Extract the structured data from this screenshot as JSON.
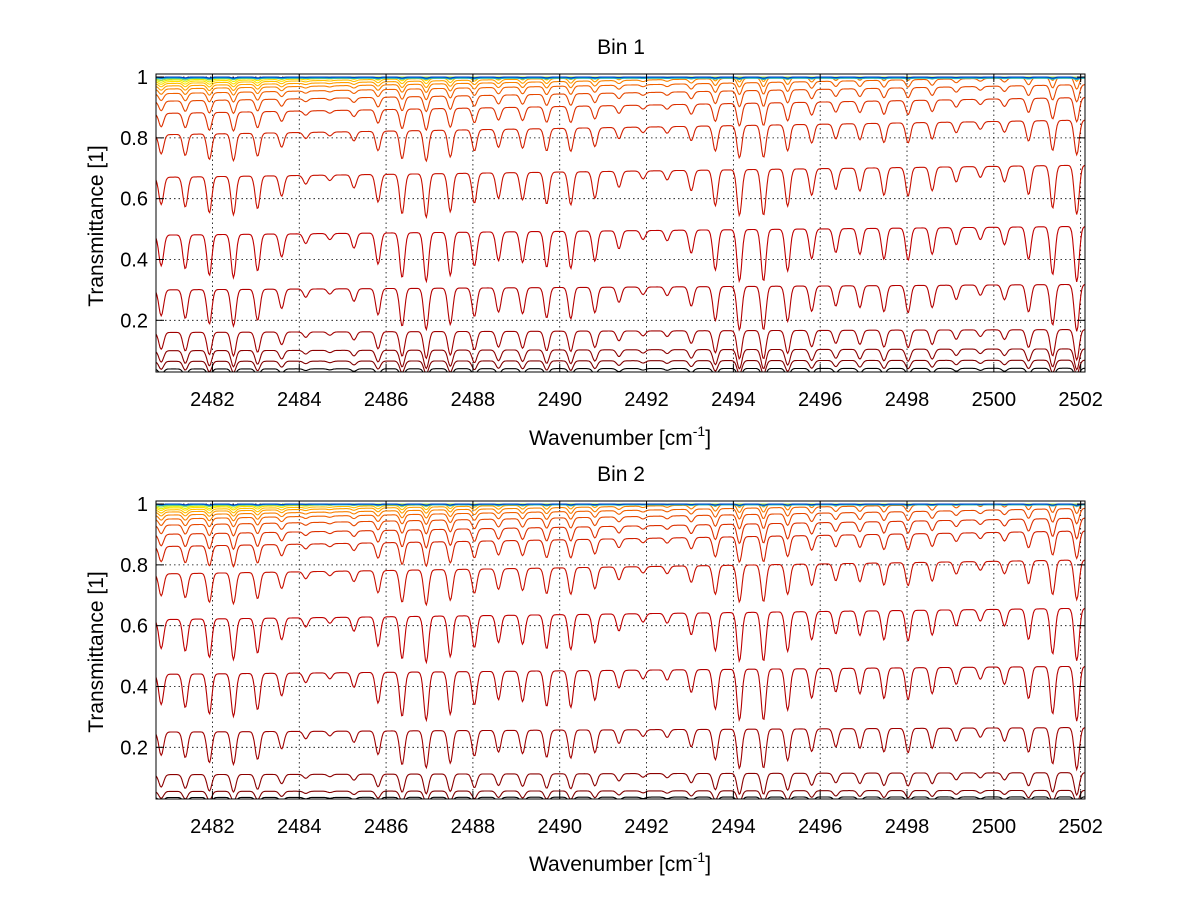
{
  "chart_data": [
    {
      "type": "line",
      "title": "Bin 1",
      "xlabel": "Wavenumber [cm",
      "xlabel_sup": "-1",
      "xlabel_close": "]",
      "ylabel": "Transmittance [1]",
      "xlim": [
        2480.7,
        2502.1
      ],
      "ylim": [
        0.03,
        1.01
      ],
      "xticks": [
        2482,
        2484,
        2486,
        2488,
        2490,
        2492,
        2494,
        2496,
        2498,
        2500,
        2502
      ],
      "yticks": [
        0.2,
        0.4,
        0.6,
        0.8,
        1
      ],
      "grid": true,
      "legend": "none",
      "line_spacing_cm1": 0.555,
      "series_baselines": [
        0.04,
        0.065,
        0.1,
        0.16,
        0.3,
        0.48,
        0.67,
        0.81,
        0.88,
        0.92,
        0.945,
        0.96,
        0.97,
        0.978,
        0.984,
        0.989,
        0.993,
        0.996,
        0.998,
        1.0
      ],
      "series_colors": [
        "#000000",
        "#7f0000",
        "#8b0000",
        "#a00000",
        "#b40000",
        "#c00000",
        "#c81000",
        "#d22000",
        "#dc3000",
        "#e64800",
        "#f06000",
        "#f88000",
        "#ffa000",
        "#ffc000",
        "#ffe000",
        "#e6f000",
        "#a0e040",
        "#40c0a0",
        "#00a0e0",
        "#0040c0"
      ]
    },
    {
      "type": "line",
      "title": "Bin 2",
      "xlabel": "Wavenumber [cm",
      "xlabel_sup": "-1",
      "xlabel_close": "]",
      "ylabel": "Transmittance [1]",
      "xlim": [
        2480.7,
        2502.1
      ],
      "ylim": [
        0.03,
        1.01
      ],
      "xticks": [
        2482,
        2484,
        2486,
        2488,
        2490,
        2492,
        2494,
        2496,
        2498,
        2500,
        2502
      ],
      "yticks": [
        0.2,
        0.4,
        0.6,
        0.8,
        1
      ],
      "grid": true,
      "legend": "none",
      "line_spacing_cm1": 0.555,
      "series_baselines": [
        0.035,
        0.055,
        0.11,
        0.25,
        0.44,
        0.62,
        0.77,
        0.86,
        0.9,
        0.93,
        0.95,
        0.963,
        0.973,
        0.98,
        0.986,
        0.99,
        0.994,
        0.997,
        0.999,
        1.0
      ],
      "series_colors": [
        "#000000",
        "#7f0000",
        "#8b0000",
        "#a00000",
        "#b40000",
        "#c00000",
        "#c81000",
        "#d22000",
        "#dc3000",
        "#e64800",
        "#f06000",
        "#f88000",
        "#ffa000",
        "#ffc000",
        "#ffe000",
        "#e6f000",
        "#a0e040",
        "#40c0a0",
        "#00a0e0",
        "#0040c0"
      ]
    }
  ]
}
